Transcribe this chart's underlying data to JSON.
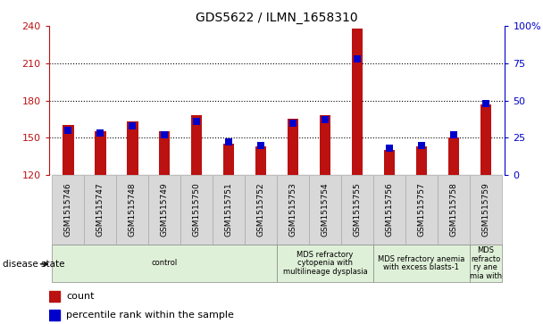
{
  "title": "GDS5622 / ILMN_1658310",
  "samples": [
    "GSM1515746",
    "GSM1515747",
    "GSM1515748",
    "GSM1515749",
    "GSM1515750",
    "GSM1515751",
    "GSM1515752",
    "GSM1515753",
    "GSM1515754",
    "GSM1515755",
    "GSM1515756",
    "GSM1515757",
    "GSM1515758",
    "GSM1515759"
  ],
  "count_values": [
    160,
    155,
    163,
    155,
    168,
    145,
    143,
    165,
    168,
    238,
    140,
    143,
    150,
    177
  ],
  "percentile_values": [
    30,
    28,
    33,
    27,
    36,
    22,
    20,
    35,
    37,
    78,
    18,
    20,
    27,
    48
  ],
  "ylim_left": [
    120,
    240
  ],
  "ylim_right": [
    0,
    100
  ],
  "yticks_left": [
    120,
    150,
    180,
    210,
    240
  ],
  "yticks_right": [
    0,
    25,
    50,
    75,
    100
  ],
  "bar_color": "#bb1111",
  "dot_color": "#0000cc",
  "bg_color": "#ffffff",
  "tick_box_color": "#d8d8d8",
  "tick_box_edge": "#aaaaaa",
  "disease_groups": [
    {
      "label": "control",
      "start": 0,
      "end": 7,
      "color": "#dff0d8"
    },
    {
      "label": "MDS refractory\ncytopenia with\nmultilineage dysplasia",
      "start": 7,
      "end": 10,
      "color": "#dff0d8"
    },
    {
      "label": "MDS refractory anemia\nwith excess blasts-1",
      "start": 10,
      "end": 13,
      "color": "#dff0d8"
    },
    {
      "label": "MDS\nrefracto\nry ane\nmia with",
      "start": 13,
      "end": 14,
      "color": "#dff0d8"
    }
  ],
  "legend_count_label": "count",
  "legend_pct_label": "percentile rank within the sample",
  "disease_state_label": "disease state",
  "bar_width": 0.35,
  "dot_size": 28,
  "title_fontsize": 10,
  "axis_fontsize": 8,
  "label_fontsize": 6.5,
  "disease_fontsize": 6,
  "legend_fontsize": 8
}
